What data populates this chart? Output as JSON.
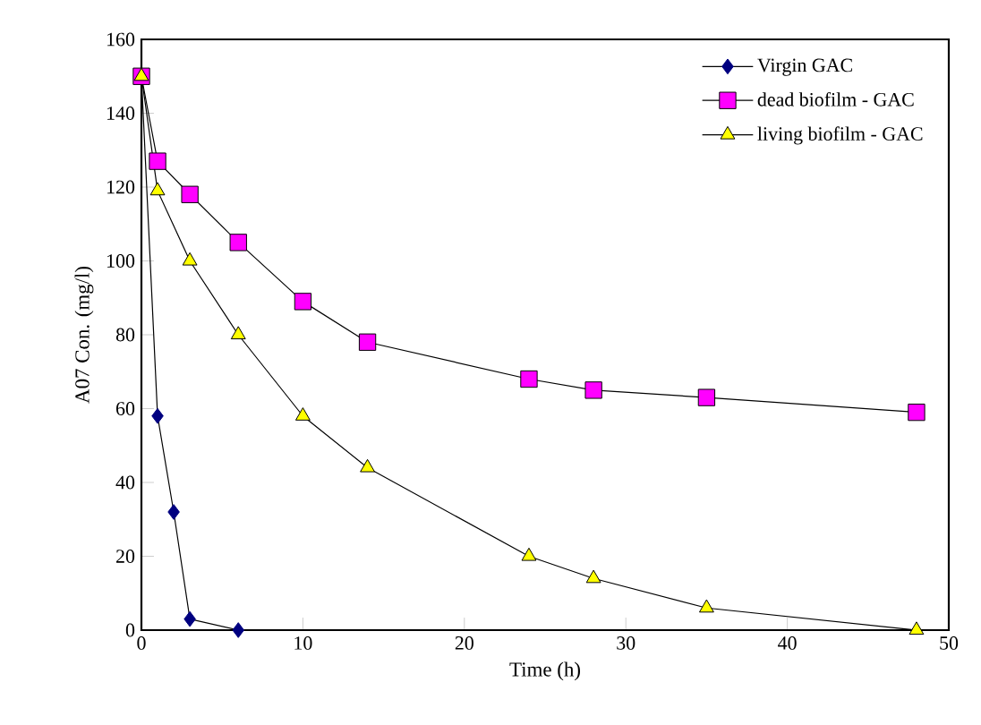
{
  "chart_data": {
    "type": "line",
    "xlabel": "Time (h)",
    "ylabel": "A07 Con. (mg/l)",
    "xlim": [
      0,
      50
    ],
    "xticks": [
      0,
      10,
      20,
      30,
      40,
      50
    ],
    "ylim": [
      0,
      160
    ],
    "yticks": [
      0,
      20,
      40,
      60,
      80,
      100,
      120,
      140,
      160
    ],
    "grid": false,
    "legend": "top right",
    "line_style": "solid",
    "series": [
      {
        "name": "Virgin GAC",
        "color": "#000080",
        "marker": "diamond",
        "x": [
          0,
          1,
          2,
          3,
          6
        ],
        "values": [
          150,
          58,
          32,
          3,
          0
        ]
      },
      {
        "name": "dead biofilm - GAC",
        "color": "#ff00ff",
        "marker": "square",
        "x": [
          0,
          1,
          3,
          6,
          10,
          14,
          24,
          28,
          35,
          48
        ],
        "values": [
          150,
          127,
          118,
          105,
          89,
          78,
          68,
          65,
          63,
          59
        ]
      },
      {
        "name": "living biofilm - GAC",
        "color": "#ffff00",
        "marker": "triangle",
        "x": [
          0,
          1,
          3,
          6,
          10,
          14,
          24,
          28,
          35,
          48
        ],
        "values": [
          150,
          119,
          100,
          80,
          58,
          44,
          20,
          14,
          6,
          0
        ]
      }
    ]
  }
}
